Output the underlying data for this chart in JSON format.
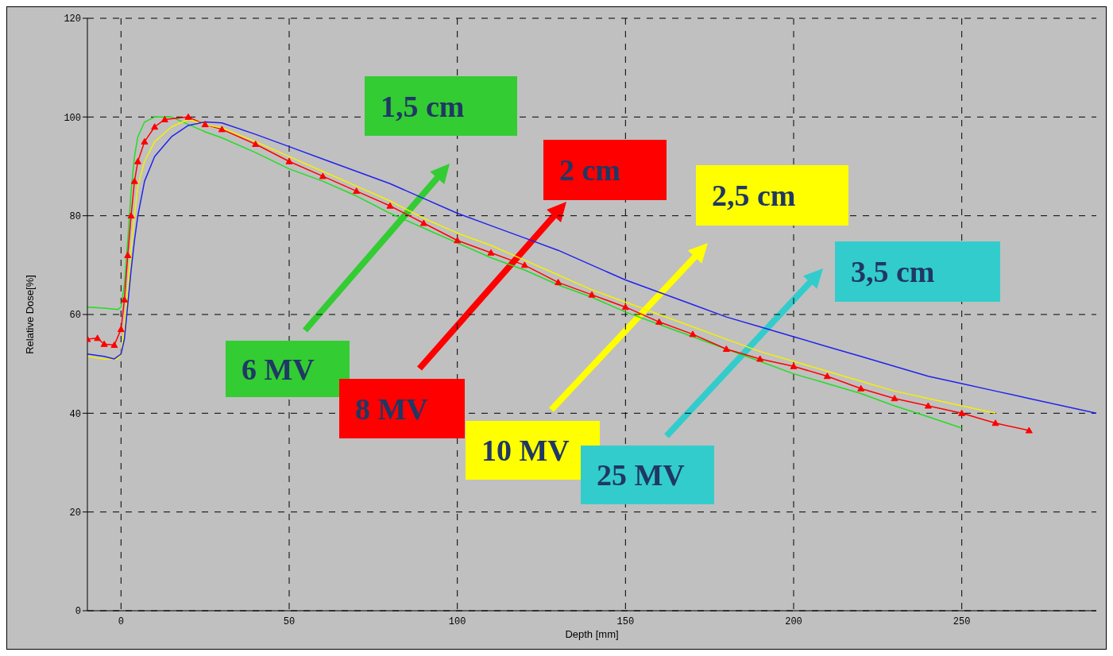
{
  "chart_data": {
    "type": "line",
    "xlabel": "Depth [mm]",
    "ylabel": "Relative Dose[%]",
    "xlim": [
      -10,
      290
    ],
    "xticks": [
      0,
      50,
      100,
      150,
      200,
      250
    ],
    "ylim": [
      0,
      120
    ],
    "yticks": [
      0,
      20,
      40,
      60,
      80,
      100,
      120
    ],
    "grid": true,
    "line_style": "solid",
    "annotations": [
      "6 MV",
      "8 MV",
      "10 MV",
      "25 MV",
      "1,5 cm",
      "2 cm",
      "2,5 cm",
      "3,5 cm"
    ],
    "series": [
      {
        "color": "#22dd22",
        "marker": "none",
        "x": [
          -10,
          -5,
          -1,
          0,
          1,
          2,
          3,
          4,
          5,
          7,
          10,
          15,
          20,
          25,
          30,
          40,
          50,
          60,
          70,
          80,
          90,
          100,
          110,
          120,
          130,
          140,
          150,
          160,
          170,
          180,
          190,
          200,
          210,
          220,
          230,
          240,
          250
        ],
        "values": [
          61.5,
          61.3,
          61,
          61.5,
          66,
          75,
          85,
          92,
          96,
          99,
          100,
          100,
          98.5,
          97,
          95.8,
          92.8,
          89.5,
          87,
          84,
          80.5,
          77.5,
          74.5,
          71.5,
          69,
          66,
          63.5,
          60.5,
          58,
          55.5,
          53,
          50.5,
          48,
          46,
          44,
          41.5,
          39.3,
          37
        ]
      },
      {
        "color": "#ff0000",
        "marker": "triangle",
        "x": [
          -10,
          -7,
          -5,
          -2,
          0,
          1,
          2,
          3,
          4,
          5,
          7,
          10,
          13,
          20,
          25,
          30,
          40,
          50,
          60,
          70,
          80,
          90,
          100,
          110,
          120,
          130,
          140,
          150,
          160,
          170,
          180,
          190,
          200,
          210,
          220,
          230,
          240,
          250,
          260,
          270
        ],
        "values": [
          55,
          55.2,
          54,
          53.8,
          57,
          63,
          72,
          80,
          87,
          91,
          95,
          98,
          99.5,
          100,
          98.5,
          97.5,
          94.5,
          91,
          88,
          85,
          82,
          78.5,
          75,
          72.5,
          70,
          66.5,
          64,
          61.5,
          58.5,
          56,
          53,
          51,
          49.5,
          47.5,
          45,
          43,
          41.5,
          40,
          38,
          36.5
        ]
      },
      {
        "color": "#f5f000",
        "marker": "none",
        "x": [
          -10,
          -5,
          -1,
          0,
          1,
          2,
          3,
          4,
          5,
          7,
          10,
          15,
          20,
          25,
          30,
          40,
          50,
          60,
          70,
          80,
          90,
          100,
          110,
          120,
          130,
          140,
          150,
          160,
          170,
          180,
          190,
          200,
          210,
          220,
          230,
          240,
          250,
          260
        ],
        "values": [
          51.5,
          51,
          51,
          52,
          57,
          65,
          73,
          80,
          86,
          91,
          95,
          98,
          99.5,
          98.5,
          97.8,
          95,
          92,
          89,
          86,
          83,
          79.5,
          76.5,
          74,
          71,
          68,
          65,
          62.5,
          60,
          57.5,
          55,
          52.5,
          50.5,
          48.5,
          46.5,
          44.5,
          43,
          41.5,
          40
        ]
      },
      {
        "color": "#2222ee",
        "marker": "none",
        "x": [
          -10,
          -5,
          -2,
          0,
          1,
          2,
          3,
          4,
          5,
          7,
          10,
          15,
          20,
          25,
          30,
          40,
          50,
          60,
          70,
          80,
          90,
          100,
          110,
          120,
          130,
          140,
          150,
          160,
          170,
          180,
          190,
          200,
          210,
          220,
          230,
          240,
          250,
          260,
          270,
          280,
          290
        ],
        "values": [
          52,
          51.5,
          51,
          52,
          55,
          62,
          69,
          75,
          80,
          87,
          92,
          96,
          98.3,
          99,
          98.8,
          96.5,
          94,
          91.5,
          89,
          86.5,
          83.5,
          80.5,
          78,
          75.5,
          73,
          70,
          67,
          64.5,
          62,
          59.5,
          57.5,
          55.5,
          53.5,
          51.5,
          49.5,
          47.5,
          46,
          44.5,
          43,
          41.5,
          40
        ]
      }
    ]
  }
}
